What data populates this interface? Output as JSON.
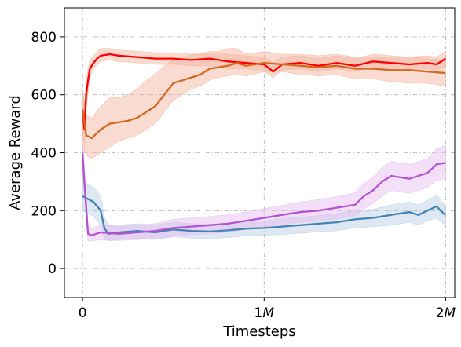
{
  "chart_data": {
    "type": "line",
    "title": "",
    "xlabel": "Timesteps",
    "ylabel": "Average Reward",
    "xlim": [
      -0.1,
      2.05
    ],
    "ylim": [
      -100,
      900
    ],
    "x_unit": "M",
    "x_ticks": [
      {
        "value": 0,
        "num": "0",
        "unit": ""
      },
      {
        "value": 1,
        "num": "1",
        "unit": "M"
      },
      {
        "value": 2,
        "num": "2",
        "unit": "M"
      }
    ],
    "y_ticks": [
      0,
      200,
      400,
      600,
      800
    ],
    "grid": true,
    "series": [
      {
        "color": "#ff0000",
        "band_color": "#f3b09a",
        "x": [
          0,
          0.01,
          0.02,
          0.03,
          0.04,
          0.06,
          0.08,
          0.1,
          0.15,
          0.2,
          0.3,
          0.4,
          0.5,
          0.6,
          0.7,
          0.8,
          0.9,
          1.0,
          1.05,
          1.1,
          1.2,
          1.3,
          1.4,
          1.5,
          1.6,
          1.7,
          1.8,
          1.9,
          1.95,
          2.0
        ],
        "y": [
          550,
          480,
          600,
          650,
          690,
          710,
          725,
          735,
          740,
          735,
          730,
          725,
          725,
          720,
          725,
          715,
          710,
          705,
          680,
          705,
          710,
          700,
          710,
          700,
          715,
          710,
          705,
          710,
          705,
          725
        ],
        "band_low": [
          420,
          400,
          540,
          610,
          660,
          690,
          705,
          715,
          720,
          715,
          710,
          705,
          705,
          700,
          700,
          690,
          690,
          680,
          660,
          685,
          690,
          680,
          690,
          680,
          695,
          690,
          685,
          690,
          685,
          700
        ],
        "band_high": [
          600,
          560,
          650,
          690,
          720,
          735,
          750,
          760,
          760,
          755,
          750,
          745,
          745,
          740,
          745,
          740,
          735,
          730,
          710,
          730,
          735,
          725,
          735,
          725,
          740,
          735,
          730,
          735,
          730,
          750
        ]
      },
      {
        "color": "#d2691e",
        "band_color": "#f3b09a",
        "x": [
          0,
          0.02,
          0.05,
          0.1,
          0.15,
          0.2,
          0.25,
          0.3,
          0.35,
          0.4,
          0.45,
          0.5,
          0.55,
          0.6,
          0.65,
          0.7,
          0.75,
          0.8,
          0.85,
          0.9,
          1.0,
          1.1,
          1.2,
          1.3,
          1.4,
          1.5,
          1.6,
          1.7,
          1.8,
          1.9,
          2.0
        ],
        "y": [
          550,
          460,
          450,
          480,
          500,
          505,
          510,
          520,
          540,
          560,
          600,
          640,
          650,
          660,
          670,
          690,
          695,
          700,
          710,
          700,
          710,
          705,
          700,
          695,
          700,
          690,
          690,
          685,
          685,
          680,
          675
        ],
        "band_low": [
          470,
          390,
          380,
          400,
          420,
          440,
          450,
          460,
          480,
          500,
          540,
          580,
          600,
          620,
          630,
          650,
          660,
          665,
          670,
          665,
          680,
          680,
          670,
          665,
          670,
          655,
          655,
          645,
          640,
          640,
          630
        ],
        "band_high": [
          620,
          530,
          520,
          560,
          590,
          590,
          600,
          620,
          650,
          670,
          700,
          720,
          730,
          740,
          740,
          750,
          750,
          760,
          760,
          740,
          750,
          740,
          740,
          735,
          740,
          730,
          730,
          730,
          730,
          725,
          720
        ]
      },
      {
        "color": "#4682b4",
        "band_color": "#b6cde4",
        "x": [
          0,
          0.03,
          0.06,
          0.1,
          0.12,
          0.14,
          0.2,
          0.3,
          0.4,
          0.5,
          0.6,
          0.7,
          0.8,
          0.9,
          1.0,
          1.1,
          1.2,
          1.3,
          1.4,
          1.5,
          1.6,
          1.7,
          1.8,
          1.85,
          1.9,
          1.95,
          1.98,
          2.0
        ],
        "y": [
          250,
          240,
          230,
          200,
          140,
          120,
          125,
          130,
          125,
          135,
          130,
          128,
          132,
          138,
          140,
          145,
          150,
          155,
          160,
          170,
          175,
          185,
          195,
          185,
          200,
          215,
          195,
          185
        ],
        "band_low": [
          200,
          190,
          180,
          150,
          100,
          95,
          100,
          105,
          100,
          110,
          105,
          103,
          107,
          113,
          115,
          118,
          122,
          127,
          131,
          140,
          145,
          150,
          160,
          150,
          165,
          175,
          160,
          150
        ],
        "band_high": [
          300,
          290,
          280,
          250,
          180,
          150,
          150,
          155,
          150,
          160,
          155,
          153,
          157,
          163,
          165,
          172,
          178,
          183,
          189,
          200,
          205,
          220,
          230,
          220,
          235,
          255,
          230,
          220
        ]
      },
      {
        "color": "#b452d4",
        "band_color": "#e4b8f0",
        "x": [
          0,
          0.01,
          0.03,
          0.05,
          0.1,
          0.2,
          0.3,
          0.4,
          0.5,
          0.6,
          0.7,
          0.8,
          0.9,
          1.0,
          1.1,
          1.2,
          1.3,
          1.4,
          1.5,
          1.55,
          1.6,
          1.65,
          1.7,
          1.8,
          1.9,
          1.95,
          2.0
        ],
        "y": [
          400,
          300,
          120,
          115,
          125,
          120,
          125,
          130,
          140,
          145,
          150,
          155,
          165,
          175,
          185,
          195,
          200,
          210,
          220,
          250,
          270,
          300,
          320,
          310,
          330,
          360,
          365
        ],
        "band_low": [
          350,
          250,
          95,
          95,
          100,
          97,
          100,
          105,
          112,
          117,
          121,
          126,
          135,
          143,
          152,
          160,
          163,
          172,
          180,
          205,
          225,
          250,
          270,
          260,
          280,
          305,
          310
        ],
        "band_high": [
          440,
          350,
          150,
          140,
          150,
          145,
          150,
          155,
          170,
          175,
          180,
          185,
          195,
          207,
          218,
          230,
          238,
          248,
          262,
          295,
          315,
          350,
          370,
          360,
          380,
          415,
          425
        ]
      }
    ]
  }
}
